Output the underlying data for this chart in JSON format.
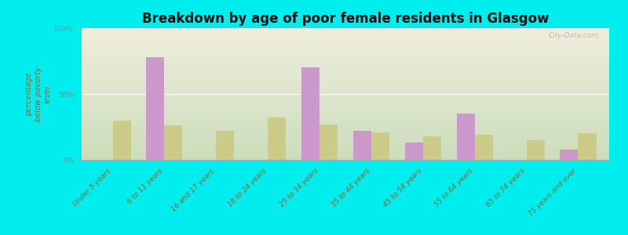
{
  "title": "Breakdown by age of poor female residents in Glasgow",
  "ylabel": "percentage\nbelow poverty\nlevel",
  "categories": [
    "Under 5 years",
    "6 to 11 years",
    "16 and 17 years",
    "18 to 24 years",
    "25 to 34 years",
    "35 to 44 years",
    "45 to 54 years",
    "55 to 64 years",
    "65 to 74 years",
    "75 years and over"
  ],
  "glasgow_values": [
    0,
    78,
    0,
    0,
    70,
    22,
    13,
    35,
    0,
    8
  ],
  "wv_values": [
    30,
    26,
    22,
    32,
    27,
    21,
    18,
    19,
    15,
    20
  ],
  "glasgow_color": "#cc99cc",
  "wv_color": "#cccc88",
  "ylim": [
    0,
    100
  ],
  "yticks": [
    0,
    50,
    100
  ],
  "ytick_labels": [
    "0%",
    "50%",
    "100%"
  ],
  "fig_bg_color": "#00eeee",
  "plot_bg_top": "#eeeedd",
  "plot_bg_bottom": "#ccddbb",
  "bar_width": 0.35,
  "title_fontsize": 12,
  "axis_label_fontsize": 7,
  "tick_fontsize": 6.5,
  "legend_fontsize": 9,
  "watermark_text": "City-Data.com",
  "label_color": "#886633",
  "ytick_color": "#888888"
}
